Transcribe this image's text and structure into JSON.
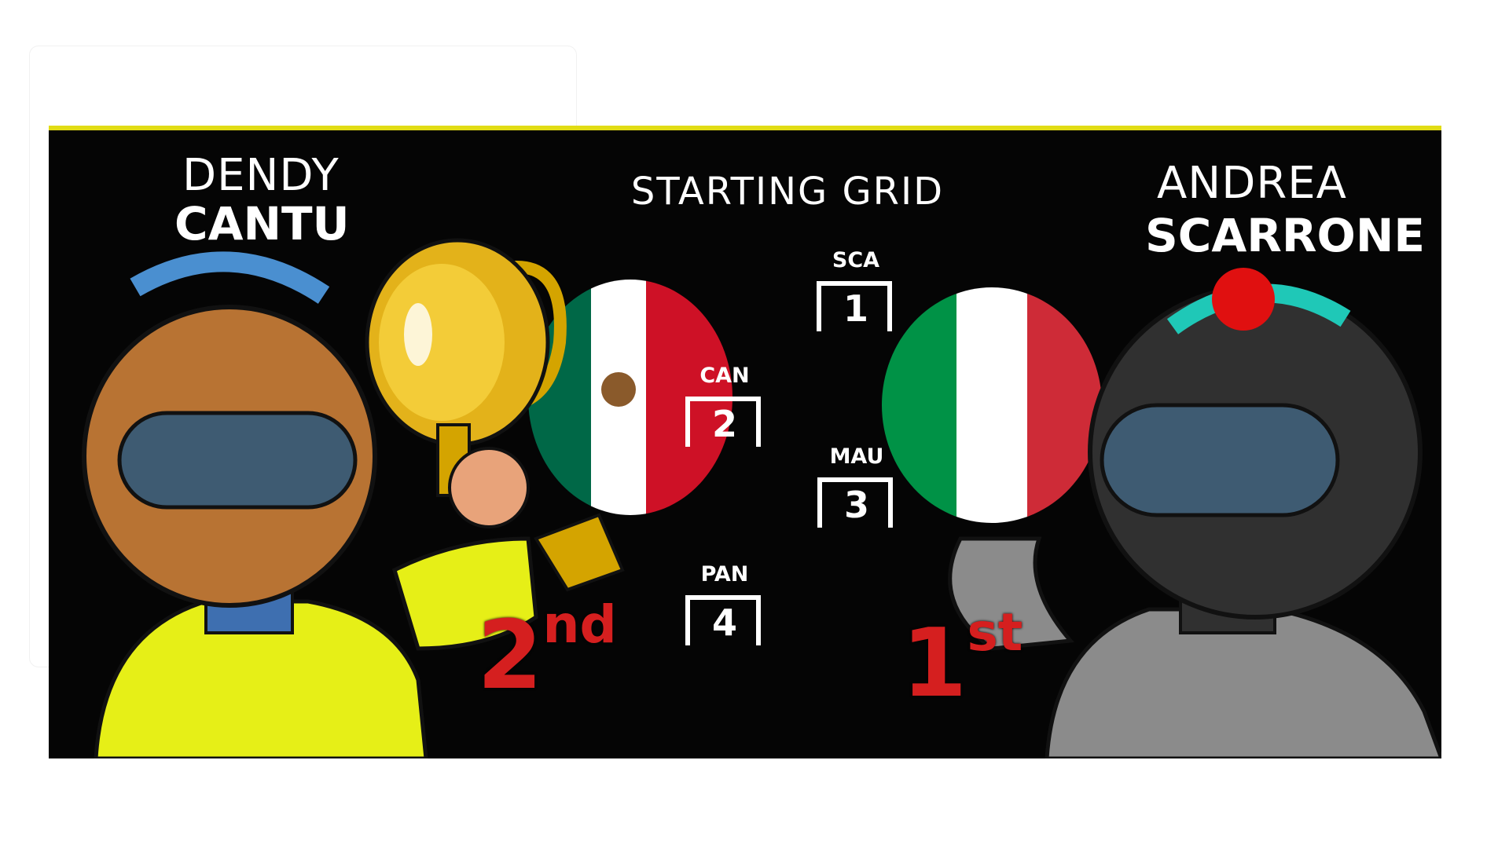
{
  "title": "STARTING GRID",
  "driver_left": {
    "first_name": "DENDY",
    "last_name": "CANTU",
    "finish": {
      "number": "2",
      "suffix": "nd"
    }
  },
  "driver_right": {
    "first_name": "ANDREA",
    "last_name": "SCARRONE",
    "finish": {
      "number": "1",
      "suffix": "st"
    }
  },
  "grid": [
    {
      "code": "SCA",
      "position": "1"
    },
    {
      "code": "CAN",
      "position": "2"
    },
    {
      "code": "MAU",
      "position": "3"
    },
    {
      "code": "PAN",
      "position": "4"
    }
  ],
  "colors": {
    "banner": "#050505",
    "accent_line": "#e1dc14",
    "place_red": "#d51f1f",
    "mexico_green": "#006847",
    "mexico_red": "#ce1126",
    "italy_green": "#009246",
    "italy_red": "#ce2b37"
  },
  "icons": [
    "trophy-icon",
    "mexico-flag-icon",
    "italy-flag-icon",
    "driver-helmet-icon"
  ]
}
